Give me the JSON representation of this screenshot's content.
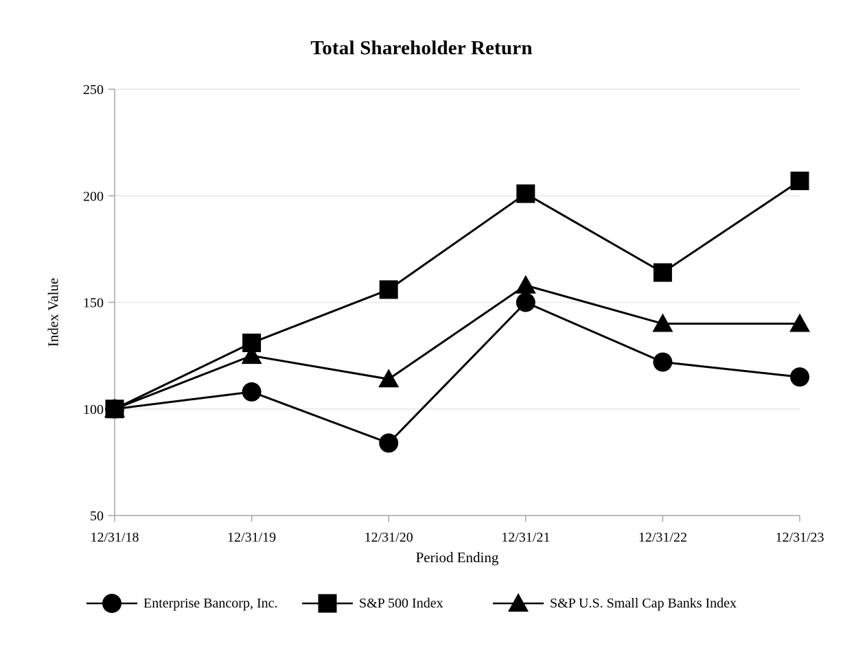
{
  "chart_data": {
    "type": "line",
    "title": "Total Shareholder Return",
    "xlabel": "Period Ending",
    "ylabel": "Index Value",
    "categories": [
      "12/31/18",
      "12/31/19",
      "12/31/20",
      "12/31/21",
      "12/31/22",
      "12/31/23"
    ],
    "series": [
      {
        "name": "Enterprise Bancorp, Inc.",
        "marker": "circle",
        "values": [
          100,
          108,
          84,
          150,
          122,
          115
        ]
      },
      {
        "name": "S&P 500 Index",
        "marker": "square",
        "values": [
          100,
          131,
          156,
          201,
          164,
          207
        ]
      },
      {
        "name": "S&P U.S. Small Cap Banks Index",
        "marker": "triangle",
        "values": [
          100,
          125,
          114,
          158,
          140,
          140
        ]
      }
    ],
    "ylim": [
      50,
      250
    ],
    "yticks": [
      50,
      100,
      150,
      200,
      250
    ],
    "grid": true,
    "legend_position": "bottom",
    "colors": {
      "series": "#000000",
      "axis": "#a6a6a6",
      "gridline": "#e7e7e7",
      "text": "#000000",
      "background": "#ffffff"
    }
  }
}
